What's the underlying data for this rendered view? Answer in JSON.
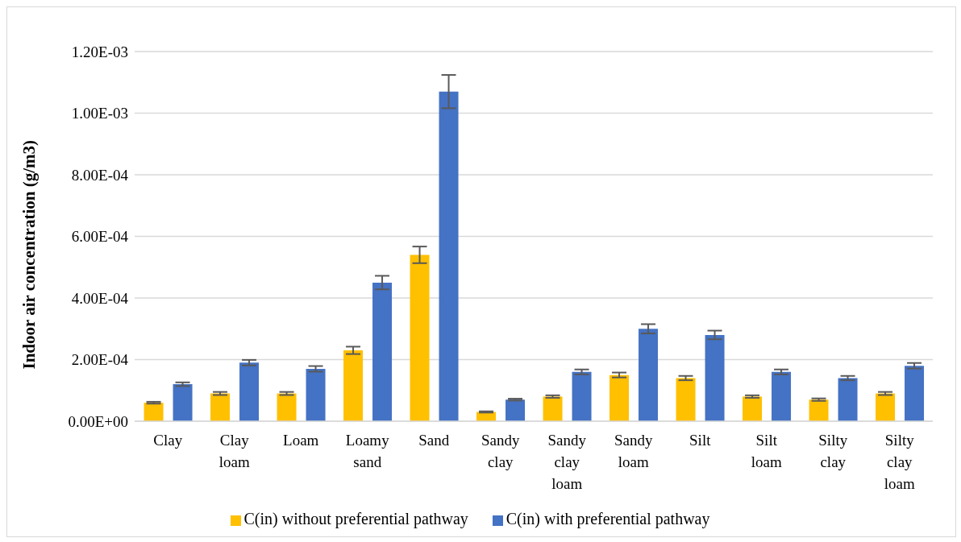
{
  "chart_data": {
    "type": "bar",
    "ylabel": "Indoor air concentration (g/m3)",
    "categories": [
      "Clay",
      "Clay loam",
      "Loam",
      "Loamy sand",
      "Sand",
      "Sandy clay",
      "Sandy clay loam",
      "Sandy loam",
      "Silt",
      "Silt loam",
      "Silty clay",
      "Silty clay loam"
    ],
    "series": [
      {
        "name": "C(in) without preferential pathway",
        "color": "#ffc000",
        "values": [
          6e-05,
          9e-05,
          9e-05,
          0.00023,
          0.00054,
          3e-05,
          8e-05,
          0.00015,
          0.00014,
          8e-05,
          7e-05,
          9e-05
        ],
        "errors": [
          3e-06,
          5e-06,
          5e-06,
          1.2e-05,
          2.7e-05,
          2e-06,
          4e-06,
          8e-06,
          7e-06,
          4e-06,
          4e-06,
          5e-06
        ]
      },
      {
        "name": "C(in) with preferential pathway",
        "color": "#4472c4",
        "values": [
          0.00012,
          0.00019,
          0.00017,
          0.00045,
          0.00107,
          7e-05,
          0.00016,
          0.0003,
          0.00028,
          0.00016,
          0.00014,
          0.00018
        ],
        "errors": [
          6e-06,
          9e-06,
          9e-06,
          2.2e-05,
          5.4e-05,
          3e-06,
          8e-06,
          1.5e-05,
          1.4e-05,
          8e-06,
          7e-06,
          9e-06
        ]
      }
    ],
    "ylim": [
      0,
      0.0012
    ],
    "yticks": [
      {
        "value": 0,
        "label": "0.00E+00"
      },
      {
        "value": 0.0002,
        "label": "2.00E-04"
      },
      {
        "value": 0.0004,
        "label": "4.00E-04"
      },
      {
        "value": 0.0006,
        "label": "6.00E-04"
      },
      {
        "value": 0.0008,
        "label": "8.00E-04"
      },
      {
        "value": 0.001,
        "label": "1.00E-03"
      },
      {
        "value": 0.0012,
        "label": "1.20E-03"
      }
    ],
    "grid": "y",
    "legend": "bottom"
  }
}
